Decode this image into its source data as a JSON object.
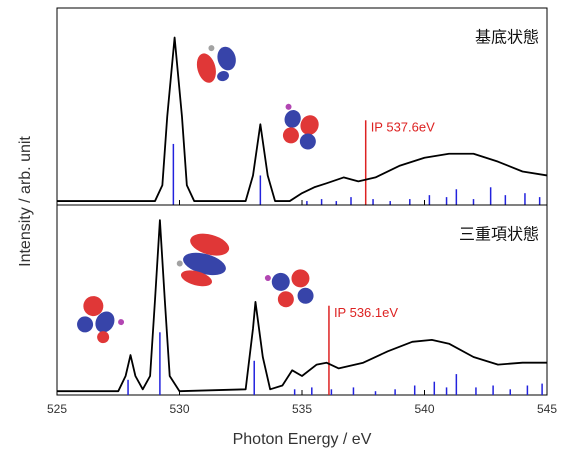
{
  "chart_data": [
    {
      "type": "line",
      "panel_label": "基底状態",
      "xlim": [
        525,
        545
      ],
      "ylim": [
        0,
        1
      ],
      "x": [
        525,
        529.0,
        529.3,
        529.5,
        529.8,
        530.1,
        530.3,
        530.6,
        532.7,
        533.0,
        533.3,
        533.6,
        533.9,
        534.5,
        535,
        535.5,
        536,
        536.7,
        537.3,
        538,
        539,
        540,
        541,
        542,
        543,
        544,
        545
      ],
      "series": [
        {
          "color": "#000000",
          "values": [
            0.02,
            0.02,
            0.1,
            0.45,
            0.85,
            0.45,
            0.1,
            0.02,
            0.02,
            0.15,
            0.41,
            0.15,
            0.02,
            0.02,
            0.06,
            0.09,
            0.11,
            0.14,
            0.12,
            0.14,
            0.2,
            0.24,
            0.26,
            0.26,
            0.22,
            0.17,
            0.15
          ]
        }
      ],
      "sticks": {
        "color": "#2222dd",
        "x": [
          529.75,
          533.3,
          535.2,
          535.8,
          536.4,
          537.0,
          537.9,
          538.6,
          539.4,
          540.2,
          540.9,
          541.3,
          542.0,
          542.7,
          543.3,
          544.1,
          544.7
        ],
        "values": [
          0.31,
          0.15,
          0.02,
          0.03,
          0.02,
          0.04,
          0.03,
          0.02,
          0.03,
          0.05,
          0.04,
          0.08,
          0.03,
          0.09,
          0.05,
          0.06,
          0.04
        ]
      },
      "ip": {
        "value": 537.6,
        "label": "IP 537.6eV",
        "color": "#dd2222",
        "height": 0.43
      }
    },
    {
      "type": "line",
      "panel_label": "三重項状態",
      "xlim": [
        525,
        545
      ],
      "ylim": [
        0,
        1
      ],
      "xlabel": "Photon Energy / eV",
      "ylabel": "Intensity / arb. unit",
      "xticks": [
        525,
        530,
        535,
        540,
        545
      ],
      "x": [
        525,
        527.5,
        527.8,
        528.0,
        528.2,
        528.5,
        528.8,
        529.0,
        529.2,
        529.4,
        529.6,
        530,
        532.7,
        533.0,
        533.1,
        533.4,
        533.7,
        534.2,
        534.6,
        535,
        535.6,
        536,
        536.5,
        537.5,
        538.5,
        539.5,
        540.3,
        541,
        542,
        543,
        544,
        545
      ],
      "series": [
        {
          "color": "#000000",
          "values": [
            0.02,
            0.02,
            0.1,
            0.21,
            0.1,
            0.03,
            0.1,
            0.5,
            0.92,
            0.5,
            0.1,
            0.02,
            0.03,
            0.35,
            0.49,
            0.2,
            0.03,
            0.05,
            0.13,
            0.1,
            0.16,
            0.17,
            0.14,
            0.17,
            0.23,
            0.28,
            0.29,
            0.27,
            0.2,
            0.16,
            0.17,
            0.17
          ]
        }
      ],
      "sticks": {
        "color": "#2222dd",
        "x": [
          527.9,
          529.2,
          533.05,
          534.7,
          535.4,
          536.2,
          537.1,
          538.0,
          538.8,
          539.6,
          540.4,
          540.9,
          541.3,
          542.1,
          542.8,
          543.5,
          544.2,
          544.8
        ],
        "values": [
          0.08,
          0.33,
          0.18,
          0.03,
          0.04,
          0.03,
          0.04,
          0.02,
          0.03,
          0.05,
          0.07,
          0.04,
          0.11,
          0.04,
          0.05,
          0.03,
          0.05,
          0.06
        ]
      },
      "ip": {
        "value": 536.1,
        "label": "IP 536.1eV",
        "color": "#dd2222",
        "height": 0.47
      }
    }
  ]
}
